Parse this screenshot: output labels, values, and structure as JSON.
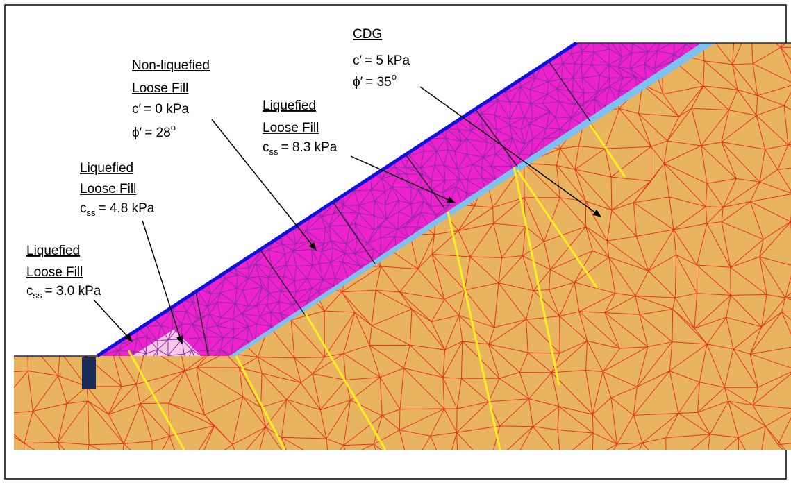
{
  "annotations": [
    {
      "heading": [
        "CDG"
      ],
      "params": [
        {
          "symbol": "c′",
          "text": "= 5 kPa"
        },
        {
          "symbol": "ϕ′",
          "text": "= 35",
          "superscript": "o"
        }
      ]
    },
    {
      "heading": [
        "Non-liquefied",
        "Loose Fill"
      ],
      "params": [
        {
          "symbol": "c′",
          "text": "= 0 kPa"
        },
        {
          "symbol": "ϕ′",
          "text": "= 28",
          "superscript": "o"
        }
      ]
    },
    {
      "heading": [
        "Liquefied",
        "Loose Fill"
      ],
      "params": [
        {
          "symbol": "c",
          "subscript": "ss",
          "text": "= 8.3 kPa"
        }
      ]
    },
    {
      "heading": [
        "Liquefied",
        "Loose Fill"
      ],
      "params": [
        {
          "symbol": "c",
          "subscript": "ss",
          "text": "= 4.8 kPa"
        }
      ]
    },
    {
      "heading": [
        "Liquefied",
        "Loose Fill"
      ],
      "params": [
        {
          "symbol": "c",
          "subscript": "ss",
          "text": "= 3.0 kPa"
        }
      ]
    }
  ]
}
